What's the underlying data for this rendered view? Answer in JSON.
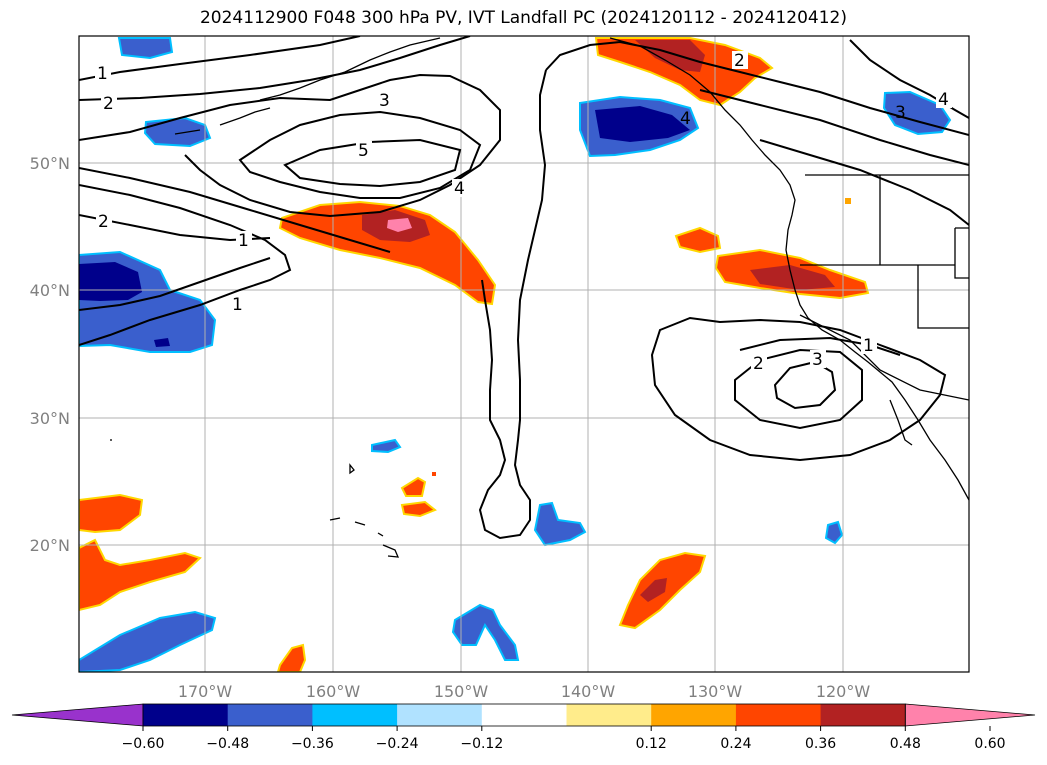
{
  "title": "2024112900 F048 300 hPa PV, IVT Landfall PC (2024120112 - 2024120412)",
  "lat_labels": [
    "50°N",
    "40°N",
    "30°N",
    "20°N"
  ],
  "lon_labels": [
    "170°W",
    "160°W",
    "150°W",
    "140°W",
    "130°W",
    "120°W"
  ],
  "contour_labels": [
    "1",
    "2",
    "3",
    "5",
    "4",
    "2",
    "1",
    "1",
    "2",
    "4",
    "3",
    "4",
    "2",
    "3",
    "1"
  ],
  "colorbar": {
    "ticks": [
      "−0.60",
      "−0.48",
      "−0.36",
      "−0.24",
      "−0.12",
      "0.12",
      "0.24",
      "0.36",
      "0.48",
      "0.60"
    ],
    "colors": [
      "#9932cc",
      "#00008b",
      "#3a5fcd",
      "#00bfff",
      "#b0e2ff",
      "#ffffff",
      "#ffec8b",
      "#ffa500",
      "#ff4500",
      "#b22222",
      "#ff82ab"
    ]
  }
}
